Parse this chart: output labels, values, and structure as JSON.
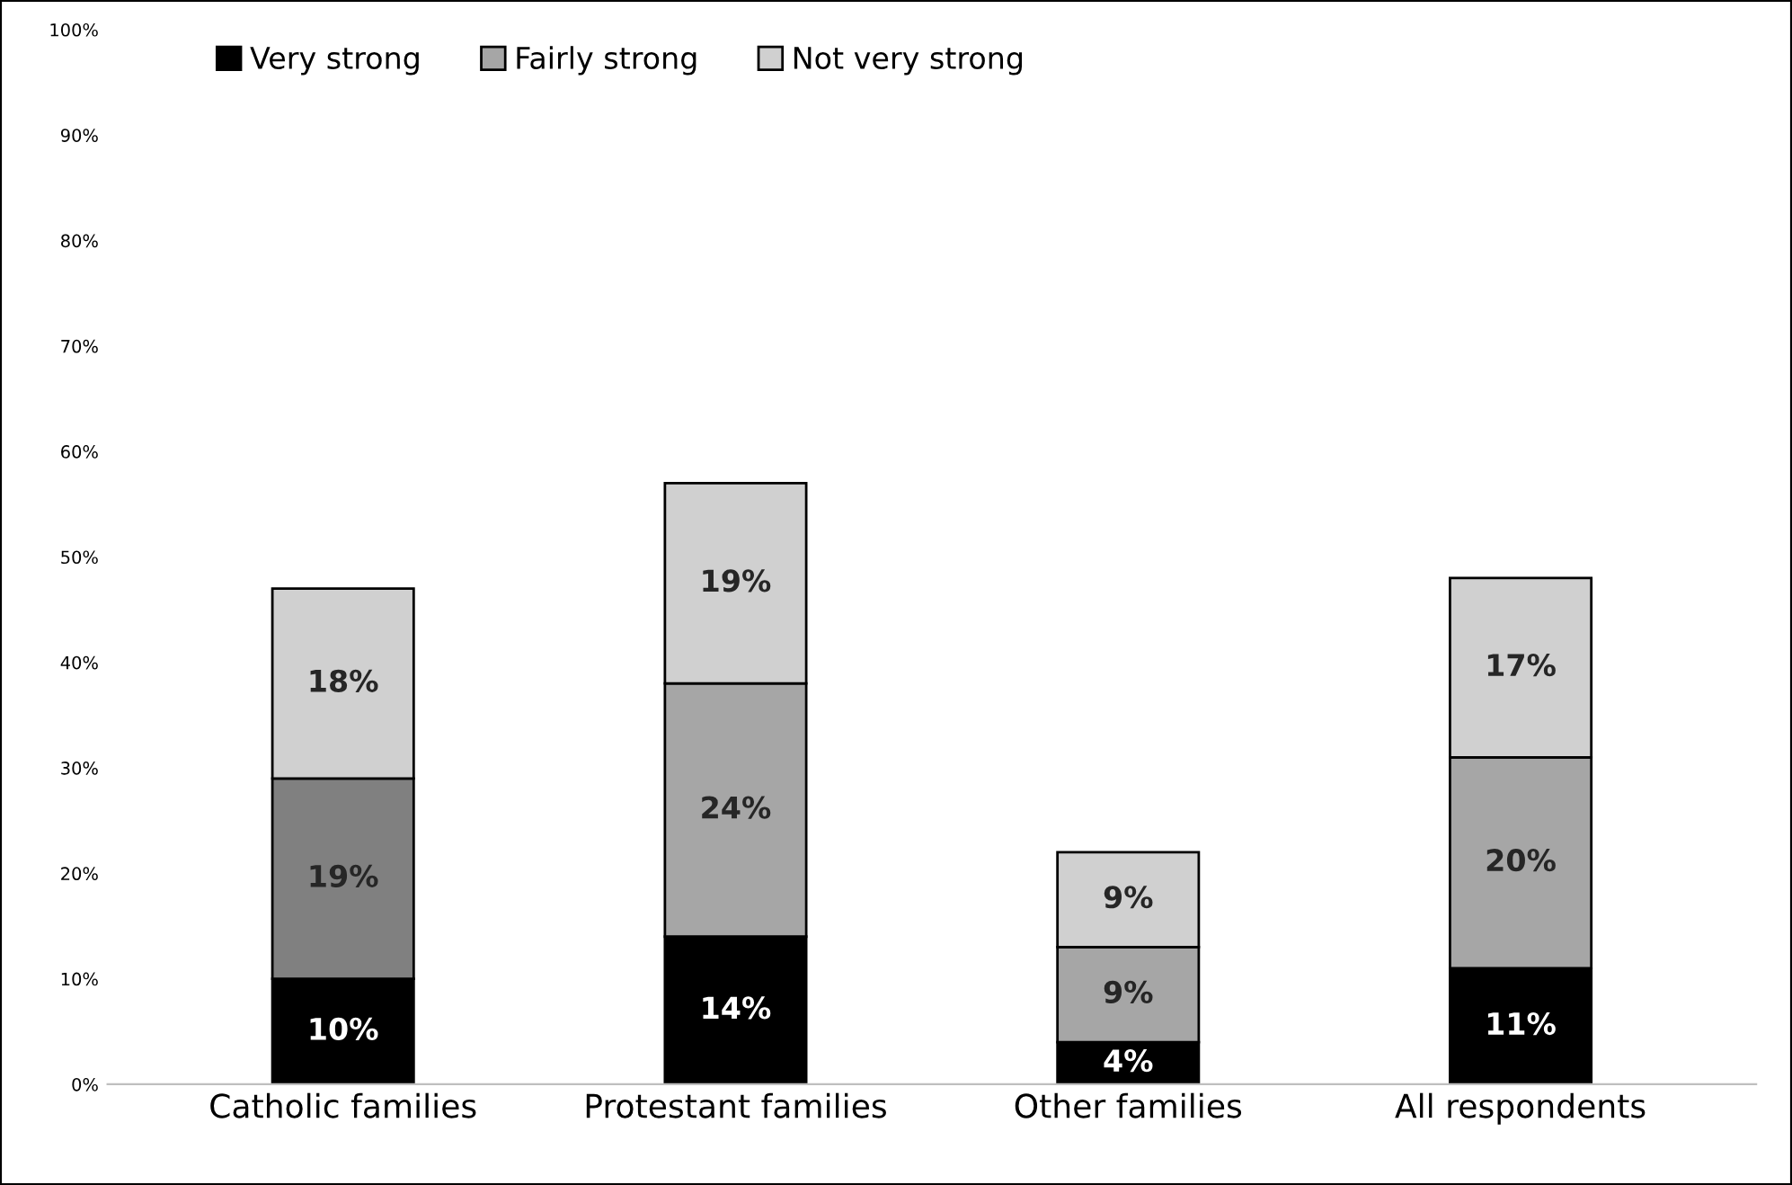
{
  "chart_data": {
    "type": "bar",
    "stacked": true,
    "categories": [
      "Catholic families",
      "Protestant families",
      "Other families",
      "All respondents"
    ],
    "series": [
      {
        "name": "Very strong",
        "color": "#000000",
        "values": [
          10,
          14,
          4,
          11
        ],
        "value_labels": [
          "10%",
          "14%",
          "4%",
          "11%"
        ]
      },
      {
        "name": "Fairly strong",
        "color": "#a6a6a6",
        "colors": [
          "#808080",
          "#a6a6a6",
          "#a6a6a6",
          "#a6a6a6"
        ],
        "values": [
          19,
          24,
          9,
          20
        ],
        "value_labels": [
          "19%",
          "24%",
          "9%",
          "20%"
        ]
      },
      {
        "name": "Not very strong",
        "color": "#d0d0d0",
        "values": [
          18,
          19,
          9,
          17
        ],
        "value_labels": [
          "18%",
          "19%",
          "9%",
          "17%"
        ]
      }
    ],
    "ylim": [
      0,
      100
    ],
    "yticks": [
      {
        "value": 0,
        "label": "0%"
      },
      {
        "value": 10,
        "label": "10%"
      },
      {
        "value": 20,
        "label": "20%"
      },
      {
        "value": 30,
        "label": "30%"
      },
      {
        "value": 40,
        "label": "40%"
      },
      {
        "value": 50,
        "label": "50%"
      },
      {
        "value": 60,
        "label": "60%"
      },
      {
        "value": 70,
        "label": "70%"
      },
      {
        "value": 80,
        "label": "80%"
      },
      {
        "value": 90,
        "label": "90%"
      },
      {
        "value": 100,
        "label": "100%"
      }
    ],
    "grid": false,
    "legend": "top left"
  }
}
